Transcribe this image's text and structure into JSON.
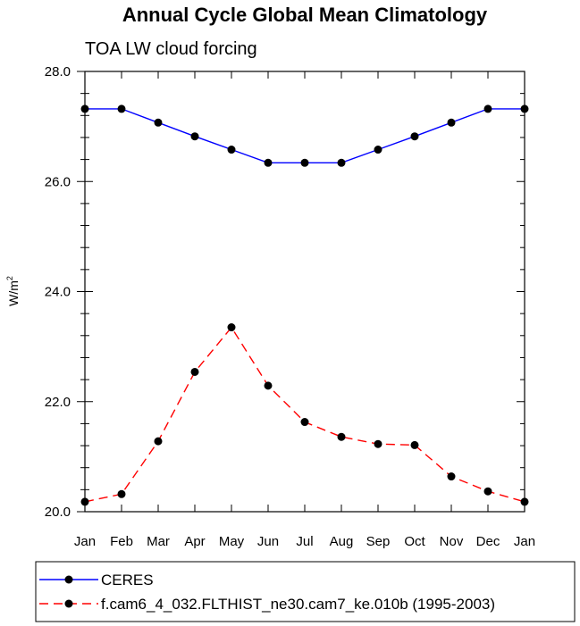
{
  "title": "Annual Cycle Global Mean Climatology",
  "subtitle": "TOA LW cloud forcing",
  "chart_data": {
    "type": "line",
    "title": "Annual Cycle Global Mean Climatology",
    "subtitle": "TOA LW cloud forcing",
    "ylabel_base": "W/m",
    "ylabel_sup": "2",
    "xlabel": "",
    "categories": [
      "Jan",
      "Feb",
      "Mar",
      "Apr",
      "May",
      "Jun",
      "Jul",
      "Aug",
      "Sep",
      "Oct",
      "Nov",
      "Dec",
      "Jan"
    ],
    "ylim": [
      20.0,
      28.0
    ],
    "yticks": [
      "20.0",
      "22.0",
      "24.0",
      "26.0",
      "28.0"
    ],
    "ytick_values": [
      20,
      22,
      24,
      26,
      28
    ],
    "y_minor_step": 0.4,
    "grid": false,
    "legend_position": "bottom",
    "series": [
      {
        "name": "CERES",
        "color": "#0000ff",
        "dash": "solid",
        "marker": "filled-circle",
        "values": [
          27.32,
          27.32,
          27.07,
          26.82,
          26.58,
          26.34,
          26.34,
          26.34,
          26.58,
          26.82,
          27.07,
          27.32,
          27.32
        ]
      },
      {
        "name": "f.cam6_4_032.FLTHIST_ne30.cam7_ke.010b (1995-2003)",
        "color": "#ff0000",
        "dash": "dashed",
        "marker": "filled-circle",
        "values": [
          20.18,
          20.32,
          21.28,
          22.54,
          23.35,
          22.29,
          21.63,
          21.36,
          21.23,
          21.21,
          20.64,
          20.37,
          20.18
        ]
      }
    ]
  }
}
